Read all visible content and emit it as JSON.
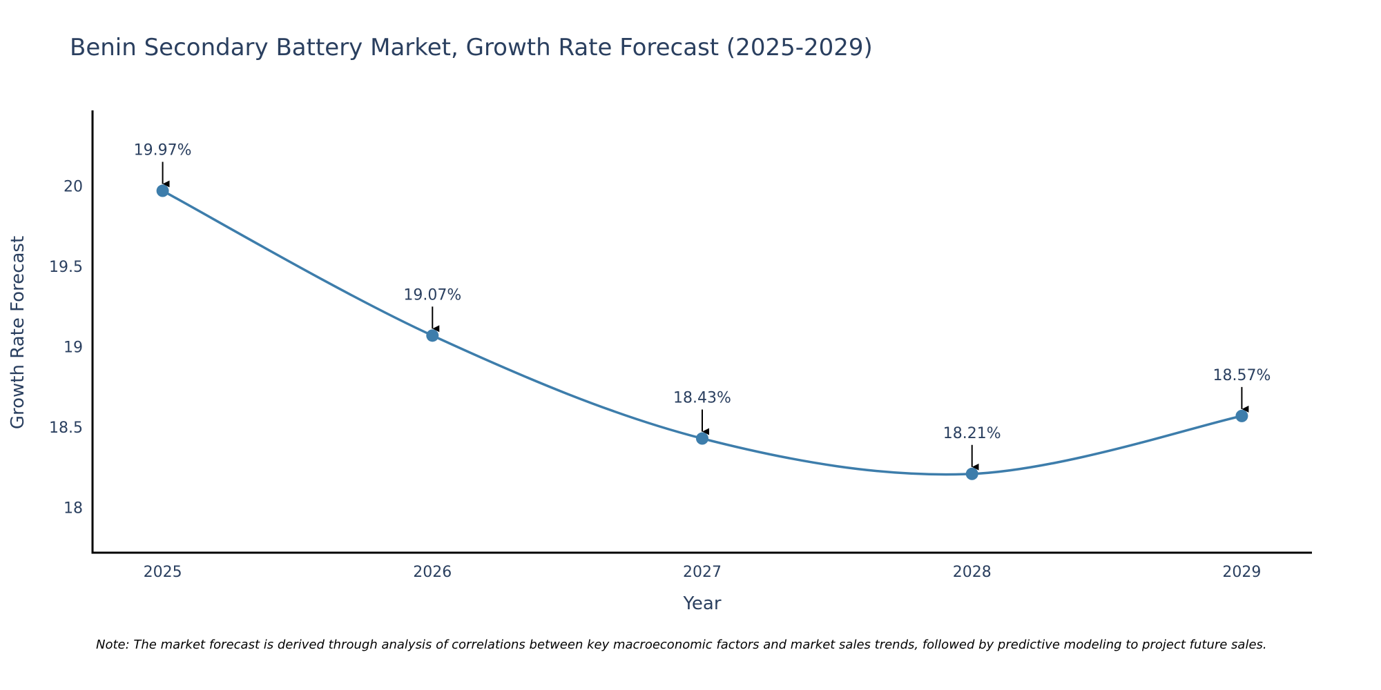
{
  "chart_data": {
    "type": "line",
    "title": "Benin Secondary Battery Market, Growth Rate Forecast (2025-2029)",
    "xlabel": "Year",
    "ylabel": "Growth Rate Forecast",
    "x": [
      2025,
      2026,
      2027,
      2028,
      2029
    ],
    "categories": [
      "2025",
      "2026",
      "2027",
      "2028",
      "2029"
    ],
    "series": [
      {
        "name": "Growth Rate Forecast",
        "values": [
          19.97,
          19.07,
          18.43,
          18.21,
          18.57
        ],
        "color": "#3d7dab"
      }
    ],
    "annotations": [
      "19.97%",
      "19.07%",
      "18.43%",
      "18.21%",
      "18.57%"
    ],
    "xlim": [
      2024.74,
      2029.26
    ],
    "ylim": [
      17.72,
      20.47
    ],
    "yticks": [
      18,
      18.5,
      19,
      19.5,
      20
    ],
    "ytick_labels": [
      "18",
      "18.5",
      "19",
      "19.5",
      "20"
    ],
    "xtick_labels": [
      "2025",
      "2026",
      "2027",
      "2028",
      "2029"
    ],
    "grid": false,
    "line_shape": "spline",
    "note": "Note: The market forecast is derived through analysis of correlations between key macroeconomic factors and market sales trends, followed by predictive modeling to project future sales."
  }
}
